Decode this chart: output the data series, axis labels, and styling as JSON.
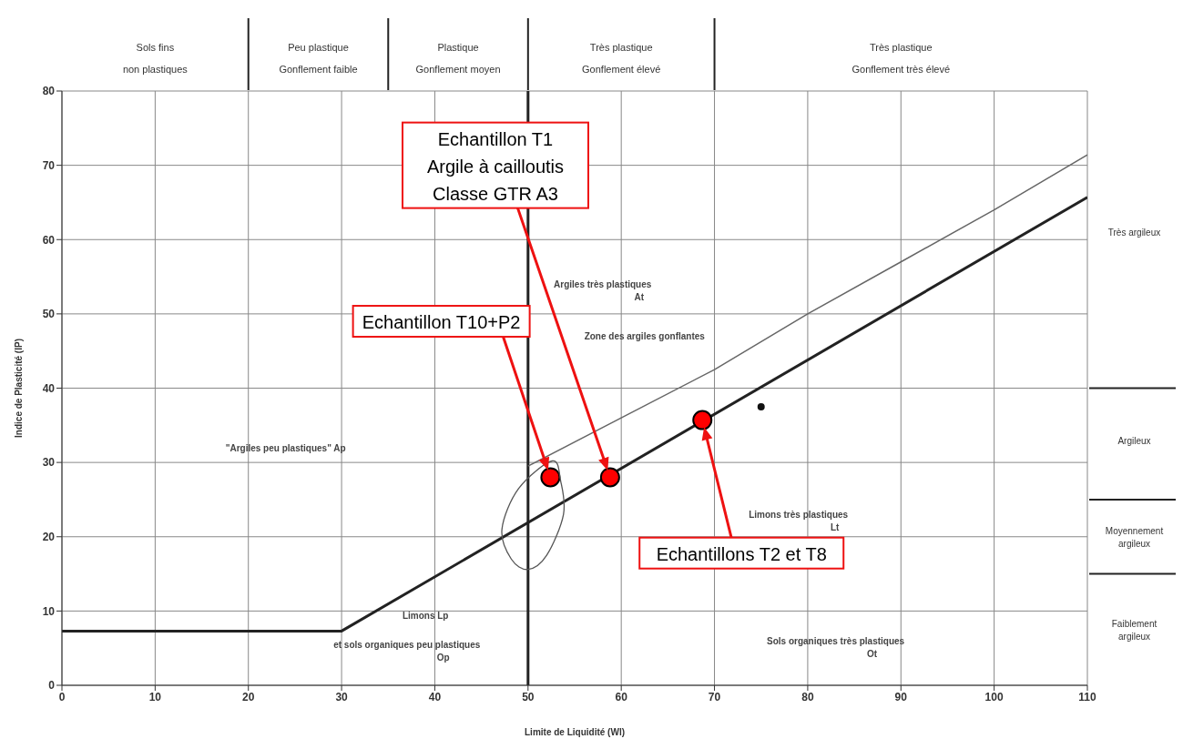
{
  "chart_data": {
    "type": "scatter",
    "xlabel": "Limite de Liquidité (Wl)",
    "ylabel": "Indice de Plasticité (IP)",
    "xlim": [
      0,
      110
    ],
    "xticks": [
      0,
      10,
      20,
      30,
      40,
      50,
      60,
      70,
      80,
      90,
      100,
      110
    ],
    "ylim": [
      0,
      80
    ],
    "yticks": [
      0,
      10,
      20,
      30,
      40,
      50,
      60,
      70,
      80
    ],
    "grid": true,
    "series": [
      {
        "type": "line",
        "color": "#222222",
        "x": [
          0,
          30,
          110
        ],
        "values": [
          7.3,
          7.3,
          65.7
        ],
        "marker": "none",
        "line_style": "solid"
      },
      {
        "type": "line",
        "color": "#666666",
        "x": [
          50,
          60,
          70,
          80,
          90,
          100,
          110
        ],
        "values": [
          29.5,
          36,
          42.5,
          50,
          57,
          64,
          71.4
        ],
        "marker": "none",
        "line_style": "solid"
      },
      {
        "type": "scatter",
        "color": "#ff0000",
        "x": [
          52.4,
          58.8,
          68.7
        ],
        "values": [
          28,
          28,
          35.7
        ],
        "marker": "circle"
      },
      {
        "type": "scatter",
        "color": "#111111",
        "x": [
          75
        ],
        "values": [
          37.5
        ],
        "marker": "circle"
      }
    ],
    "ref_lines": [
      {
        "axis": "x",
        "value": 50,
        "color": "#222222"
      }
    ],
    "annotations": [
      "Echantillon T1\nArgile à cailloutis\nClasse GTR A3",
      "Echantillon T10+P2",
      "Echantillons T2 et T8",
      "Argiles très plastiques\nAt",
      "Zone des argiles gonflantes",
      "\"Argiles peu plastiques\"  Ap",
      "Limons très plastiques\nLt",
      "Limons   Lp",
      "et sols organiques peu plastiques\nOp",
      "Sols organiques très plastiques\nOt",
      "Sols fins\nnon plastiques",
      "Peu plastique\nGonflement faible",
      "Plastique\nGonflement moyen",
      "Très plastique\nGonflement élevé",
      "Très plastique\nGonflement très élevé",
      "Très argileux",
      "Argileux",
      "Moyennement\nargileux",
      "Faiblement\nargileux"
    ]
  }
}
